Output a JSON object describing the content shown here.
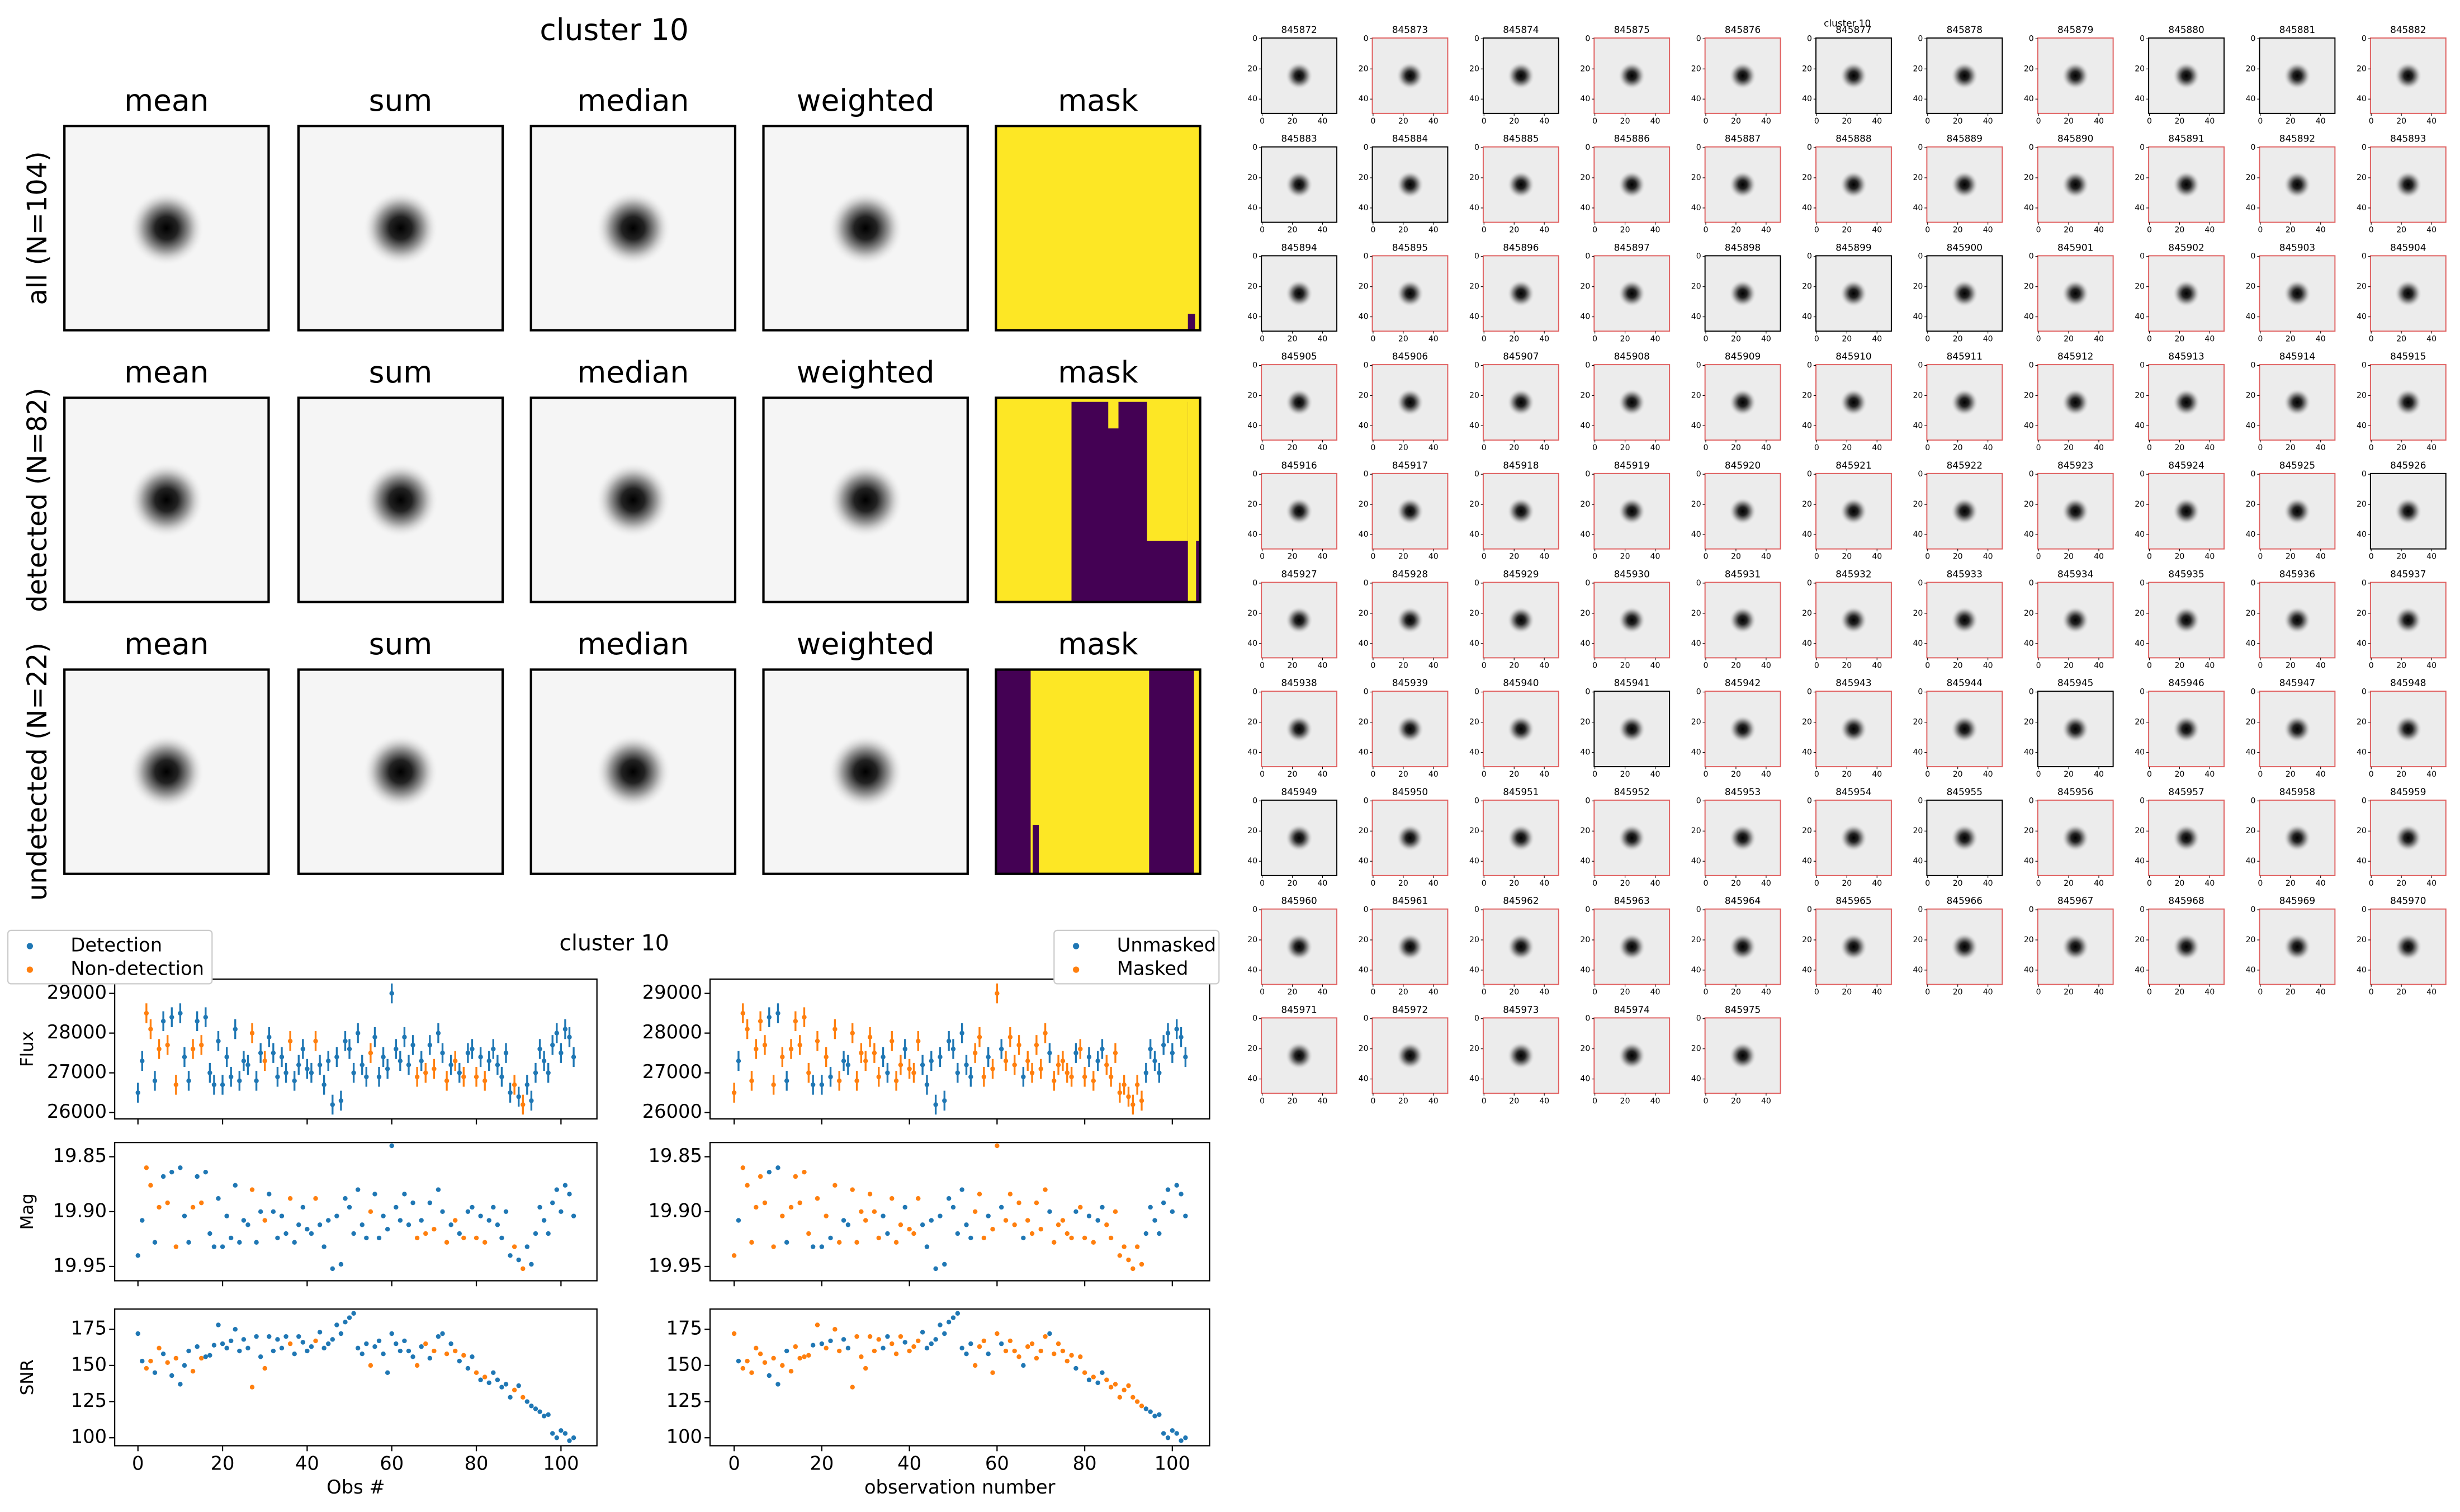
{
  "chart_data": [
    {
      "type": "image_grid",
      "title": "cluster 10",
      "columns": [
        "mean",
        "sum",
        "median",
        "weighted",
        "mask"
      ],
      "rows": [
        "all (N=104)",
        "detected (N=82)",
        "undetected (N=22)"
      ]
    },
    {
      "type": "scatter",
      "title": "cluster 10",
      "x": [
        0,
        1,
        2,
        3,
        4,
        5,
        6,
        7,
        8,
        9,
        10,
        11,
        12,
        13,
        14,
        15,
        16,
        17,
        18,
        19,
        20,
        21,
        22,
        23,
        24,
        25,
        26,
        27,
        28,
        29,
        30,
        31,
        32,
        33,
        34,
        35,
        36,
        37,
        38,
        39,
        40,
        41,
        42,
        43,
        44,
        45,
        46,
        47,
        48,
        49,
        50,
        51,
        52,
        53,
        54,
        55,
        56,
        57,
        58,
        59,
        60,
        61,
        62,
        63,
        64,
        65,
        66,
        67,
        68,
        69,
        70,
        71,
        72,
        73,
        74,
        75,
        76,
        77,
        78,
        79,
        80,
        81,
        82,
        83,
        84,
        85,
        86,
        87,
        88,
        89,
        90,
        91,
        92,
        93,
        94,
        95,
        96,
        97,
        98,
        99,
        100,
        101,
        102,
        103
      ],
      "xlim": [
        -5.5,
        108.5
      ],
      "xticks": [
        0,
        20,
        40,
        60,
        80,
        100
      ],
      "panels": [
        {
          "ylabel": "Flux",
          "ylim": [
            25840,
            29360
          ],
          "yticks": [
            26000,
            27000,
            28000,
            29000
          ],
          "yerr": 250,
          "values": [
            26500,
            27300,
            28500,
            28100,
            26800,
            27600,
            28300,
            27700,
            28400,
            26700,
            28500,
            27400,
            26800,
            27600,
            28300,
            27700,
            28400,
            27000,
            26700,
            27800,
            26700,
            27400,
            26900,
            28100,
            26800,
            27300,
            27200,
            28000,
            26800,
            27500,
            27300,
            27900,
            27500,
            26900,
            27400,
            27000,
            27800,
            26800,
            27200,
            27600,
            27100,
            27000,
            27800,
            27200,
            26700,
            27300,
            26200,
            27400,
            26300,
            27800,
            27600,
            27000,
            28000,
            27200,
            26900,
            27500,
            27900,
            26900,
            27400,
            27100,
            29000,
            27600,
            27300,
            27900,
            27200,
            27700,
            26900,
            27300,
            27000,
            27700,
            27100,
            28000,
            27500,
            26800,
            27200,
            27300,
            27000,
            26900,
            27500,
            27600,
            26900,
            27400,
            26800,
            27300,
            27600,
            27200,
            26900,
            27500,
            26500,
            26700,
            26400,
            26200,
            26700,
            26300,
            27000,
            27600,
            27300,
            27000,
            27700,
            28000,
            27500,
            28100,
            27900,
            27400
          ]
        },
        {
          "ylabel": "Mag",
          "ylim": [
            19.963,
            19.837
          ],
          "yticks": [
            19.85,
            {
              "value": 19.9,
              "label": "19.90"
            },
            19.95
          ],
          "values": [
            19.94,
            19.908,
            19.86,
            19.876,
            19.928,
            19.896,
            19.868,
            19.892,
            19.864,
            19.932,
            19.86,
            19.904,
            19.928,
            19.896,
            19.868,
            19.892,
            19.864,
            19.92,
            19.932,
            19.888,
            19.932,
            19.904,
            19.924,
            19.876,
            19.928,
            19.908,
            19.912,
            19.88,
            19.928,
            19.9,
            19.908,
            19.884,
            19.9,
            19.924,
            19.904,
            19.92,
            19.888,
            19.928,
            19.912,
            19.896,
            19.916,
            19.92,
            19.888,
            19.912,
            19.932,
            19.908,
            19.952,
            19.904,
            19.948,
            19.888,
            19.896,
            19.92,
            19.88,
            19.912,
            19.924,
            19.9,
            19.884,
            19.924,
            19.904,
            19.916,
            19.84,
            19.896,
            19.908,
            19.884,
            19.912,
            19.892,
            19.924,
            19.908,
            19.92,
            19.892,
            19.916,
            19.88,
            19.9,
            19.928,
            19.912,
            19.908,
            19.92,
            19.924,
            19.9,
            19.896,
            19.924,
            19.904,
            19.928,
            19.908,
            19.896,
            19.912,
            19.924,
            19.9,
            19.94,
            19.932,
            19.944,
            19.952,
            19.932,
            19.948,
            19.92,
            19.896,
            19.908,
            19.92,
            19.892,
            19.88,
            19.9,
            19.876,
            19.884,
            19.904
          ]
        },
        {
          "ylabel": "SNR",
          "ylim": [
            94.5,
            189
          ],
          "yticks": [
            100,
            125,
            150,
            175
          ],
          "values": [
            172,
            153,
            148,
            153,
            145,
            162,
            158,
            152,
            143,
            155,
            137,
            150,
            160,
            146,
            163,
            155,
            156,
            157,
            164,
            178,
            165,
            162,
            167,
            175,
            160,
            168,
            162,
            135,
            170,
            156,
            148,
            170,
            160,
            168,
            162,
            170,
            165,
            158,
            170,
            166,
            160,
            163,
            167,
            173,
            162,
            165,
            168,
            178,
            172,
            180,
            183,
            186,
            162,
            158,
            165,
            150,
            163,
            167,
            158,
            145,
            172,
            165,
            160,
            167,
            160,
            156,
            150,
            163,
            165,
            155,
            160,
            170,
            172,
            158,
            165,
            160,
            153,
            157,
            148,
            156,
            145,
            140,
            142,
            138,
            145,
            140,
            135,
            137,
            128,
            133,
            136,
            128,
            125,
            122,
            120,
            118,
            115,
            116,
            103,
            100,
            105,
            103,
            98,
            100
          ]
        }
      ],
      "views": [
        {
          "xlabel": "Obs #",
          "legend": "upper left",
          "series": [
            {
              "name": "Detection",
              "color": "#1f77b4"
            },
            {
              "name": "Non-detection",
              "color": "#ff7f0e"
            }
          ],
          "groups": [
            0,
            0,
            1,
            1,
            0,
            1,
            0,
            1,
            0,
            1,
            0,
            0,
            0,
            1,
            0,
            1,
            0,
            0,
            0,
            0,
            0,
            0,
            0,
            0,
            0,
            0,
            0,
            1,
            0,
            0,
            1,
            0,
            0,
            0,
            0,
            0,
            1,
            0,
            0,
            0,
            0,
            0,
            1,
            0,
            0,
            0,
            0,
            0,
            0,
            0,
            0,
            0,
            0,
            0,
            0,
            1,
            0,
            0,
            0,
            0,
            0,
            0,
            0,
            0,
            0,
            0,
            1,
            0,
            1,
            0,
            1,
            0,
            0,
            1,
            0,
            1,
            0,
            1,
            0,
            0,
            1,
            0,
            1,
            0,
            0,
            0,
            0,
            0,
            0,
            1,
            0,
            1,
            0,
            0,
            0,
            0,
            0,
            0,
            0,
            0,
            0,
            0,
            0,
            0
          ]
        },
        {
          "xlabel": "observation number",
          "legend": "upper right",
          "series": [
            {
              "name": "Unmasked",
              "color": "#1f77b4"
            },
            {
              "name": "Masked",
              "color": "#ff7f0e"
            }
          ],
          "groups": [
            1,
            0,
            1,
            1,
            1,
            1,
            1,
            1,
            0,
            1,
            0,
            1,
            0,
            1,
            1,
            1,
            1,
            1,
            0,
            1,
            0,
            1,
            0,
            1,
            1,
            0,
            0,
            1,
            1,
            1,
            1,
            1,
            1,
            1,
            0,
            0,
            1,
            1,
            1,
            0,
            1,
            1,
            1,
            0,
            0,
            0,
            0,
            0,
            0,
            0,
            0,
            0,
            0,
            0,
            0,
            1,
            1,
            1,
            0,
            1,
            1,
            0,
            1,
            1,
            1,
            1,
            0,
            1,
            1,
            1,
            1,
            1,
            0,
            1,
            1,
            1,
            1,
            1,
            0,
            1,
            1,
            0,
            1,
            0,
            0,
            1,
            1,
            1,
            1,
            1,
            1,
            1,
            1,
            1,
            0,
            0,
            0,
            0,
            0,
            0,
            0,
            0,
            0,
            0
          ]
        }
      ]
    },
    {
      "type": "thumbnails",
      "title": "cluster 10",
      "labels": [
        "845872",
        "845873",
        "845874",
        "845875",
        "845876",
        "845877",
        "845878",
        "845879",
        "845880",
        "845881",
        "845882",
        "845883",
        "845884",
        "845885",
        "845886",
        "845887",
        "845888",
        "845889",
        "845890",
        "845891",
        "845892",
        "845893",
        "845894",
        "845895",
        "845896",
        "845897",
        "845898",
        "845899",
        "845900",
        "845901",
        "845902",
        "845903",
        "845904",
        "845905",
        "845906",
        "845907",
        "845908",
        "845909",
        "845910",
        "845911",
        "845912",
        "845913",
        "845914",
        "845915",
        "845916",
        "845917",
        "845918",
        "845919",
        "845920",
        "845921",
        "845922",
        "845923",
        "845924",
        "845925",
        "845926",
        "845927",
        "845928",
        "845929",
        "845930",
        "845931",
        "845932",
        "845933",
        "845934",
        "845935",
        "845936",
        "845937",
        "845938",
        "845939",
        "845940",
        "845941",
        "845942",
        "845943",
        "845944",
        "845945",
        "845946",
        "845947",
        "845948",
        "845949",
        "845950",
        "845951",
        "845952",
        "845953",
        "845954",
        "845955",
        "845956",
        "845957",
        "845958",
        "845959",
        "845960",
        "845961",
        "845962",
        "845963",
        "845964",
        "845965",
        "845966",
        "845967",
        "845968",
        "845969",
        "845970",
        "845971",
        "845972",
        "845973",
        "845974",
        "845975"
      ],
      "xlim": [
        -0.5,
        49.5
      ],
      "ylim": [
        49.5,
        -0.5
      ],
      "xticks": [
        0,
        20,
        40
      ],
      "yticks": [
        0,
        20,
        40
      ],
      "frame_color": "#e06060",
      "framed": [
        0,
        1,
        0,
        1,
        1,
        0,
        0,
        1,
        0,
        0,
        1,
        0,
        0,
        1,
        1,
        1,
        1,
        1,
        1,
        1,
        1,
        1,
        0,
        1,
        1,
        1,
        0,
        0,
        0,
        1,
        1,
        1,
        1,
        1,
        1,
        1,
        1,
        1,
        1,
        1,
        1,
        1,
        1,
        1,
        1,
        1,
        1,
        1,
        1,
        1,
        1,
        1,
        1,
        1,
        0,
        1,
        1,
        1,
        1,
        1,
        1,
        1,
        1,
        1,
        1,
        1,
        1,
        1,
        1,
        0,
        1,
        1,
        1,
        0,
        1,
        1,
        1,
        0,
        1,
        1,
        1,
        1,
        1,
        0,
        1,
        1,
        1,
        1,
        1,
        1,
        1,
        1,
        1,
        1,
        1,
        1,
        1,
        1,
        1,
        1,
        1,
        1,
        1,
        1
      ]
    }
  ]
}
